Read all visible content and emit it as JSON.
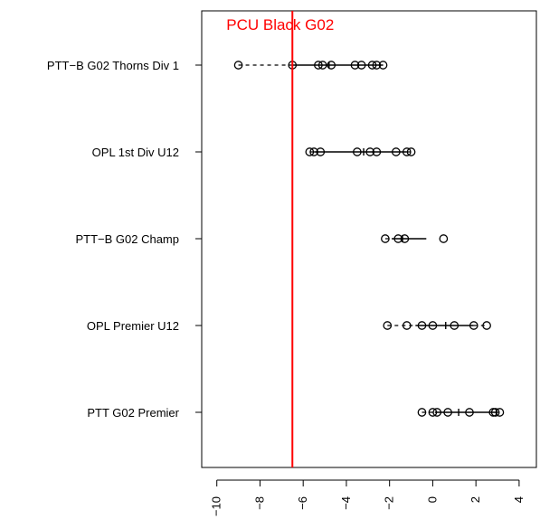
{
  "chart_data": {
    "type": "scatter",
    "categories": [
      "PTT−B G02 Thorns Div 1",
      "OPL 1st Div U12",
      "PTT−B G02 Champ",
      "OPL Premier U12",
      "PTT G02 Premier"
    ],
    "series": [
      {
        "category": "PTT−B G02 Thorns Div 1",
        "points": [
          -9.0,
          -6.5,
          -5.3,
          -5.1,
          -4.7,
          -3.6,
          -3.3,
          -2.8,
          -2.6,
          -2.3
        ],
        "whisker": [
          -9.0,
          -2.3
        ],
        "box": [
          -6.5,
          -2.3
        ],
        "median": -4.8
      },
      {
        "category": "OPL 1st Div U12",
        "points": [
          -5.7,
          -5.5,
          -5.2,
          -3.5,
          -2.9,
          -2.6,
          -1.7,
          -1.2,
          -1.0
        ],
        "whisker": [
          -5.7,
          -1.0
        ],
        "box": [
          -5.5,
          -1.2
        ],
        "median": -3.2
      },
      {
        "category": "PTT−B G02 Champ",
        "points": [
          -2.2,
          -1.6,
          -1.3,
          0.5
        ],
        "whisker": [
          -2.2,
          -0.3
        ],
        "box": [
          -1.9,
          -0.3
        ],
        "median": -1.4
      },
      {
        "category": "OPL Premier U12",
        "points": [
          -2.1,
          -1.2,
          -0.5,
          0.0,
          1.0,
          1.9,
          2.5
        ],
        "whisker": [
          -2.1,
          2.5
        ],
        "box": [
          -0.8,
          1.9
        ],
        "median": 0.6
      },
      {
        "category": "PTT G02 Premier",
        "points": [
          -0.5,
          0.0,
          0.2,
          0.7,
          1.7,
          2.8,
          2.9,
          3.1
        ],
        "whisker": [
          -0.5,
          3.1
        ],
        "box": [
          0.1,
          2.9
        ],
        "median": 1.2
      }
    ],
    "reference_line": {
      "x": -6.5,
      "label": "PCU Black G02",
      "color": "#ff0000"
    },
    "xlim": [
      -10.7,
      4.8
    ],
    "xticks": [
      -10,
      -8,
      -6,
      -4,
      -2,
      0,
      2,
      4
    ],
    "xtick_labels": [
      "−10",
      "−8",
      "−6",
      "−4",
      "−2",
      "0",
      "2",
      "4"
    ],
    "title": "",
    "xlabel": "",
    "ylabel": "",
    "grid": false,
    "colors": {
      "points": "#000000",
      "reference": "#ff0000",
      "frame": "#000000"
    }
  }
}
